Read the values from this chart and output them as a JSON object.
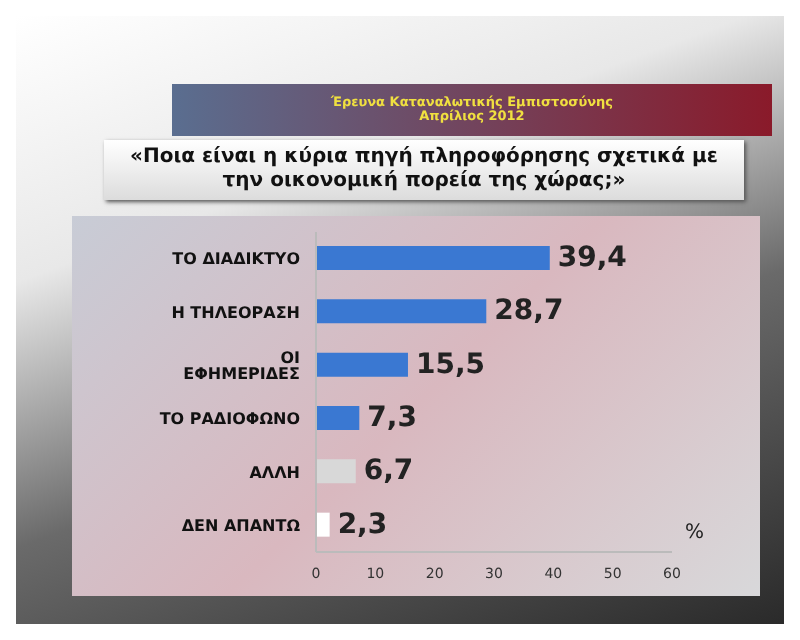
{
  "chart_data": {
    "type": "bar",
    "orientation": "horizontal",
    "title": "Έρευνα Καταναλωτικής Εμπιστοσύνης\nΑπρίλιος 2012",
    "subtitle": "«Ποια είναι η κύρια πηγή πληροφόρησης σχετικά με την οικονομική πορεία της χώρας;»",
    "categories": [
      "ΤΟ ΔΙΑΔΙΚΤΥΟ",
      "Η ΤΗΛΕΟΡΑΣΗ",
      "ΟΙ ΕΦΗΜΕΡΙΔΕΣ",
      "ΤΟ ΡΑΔΙΟΦΩΝΟ",
      "ΑΛΛΗ",
      "ΔΕΝ ΑΠΑΝΤΩ"
    ],
    "values": [
      39.4,
      28.7,
      15.5,
      7.3,
      6.7,
      2.3
    ],
    "colors": [
      "#3a78d2",
      "#3a78d2",
      "#3a78d2",
      "#3a78d2",
      "#d8d8d8",
      "#ffffff"
    ],
    "value_labels": [
      "39,4",
      "28,7",
      "15,5",
      "7,3",
      "6,7",
      "2,3"
    ],
    "xlim": [
      0,
      60
    ],
    "xticks": [
      0,
      10,
      20,
      30,
      40,
      50,
      60
    ],
    "annotations": [
      "%"
    ],
    "grid": false,
    "legend": false
  }
}
